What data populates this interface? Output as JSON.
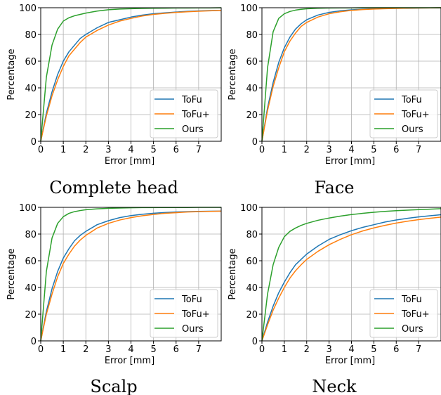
{
  "chart_data": [
    {
      "type": "line",
      "caption": "Complete head",
      "xlabel": "Error [mm]",
      "ylabel": "Percentage",
      "xlim": [
        0,
        8
      ],
      "ylim": [
        0,
        100
      ],
      "xticks": [
        0,
        1,
        2,
        3,
        4,
        5,
        6,
        7
      ],
      "yticks": [
        0,
        20,
        40,
        60,
        80,
        100
      ],
      "grid": true,
      "legend_position": "bottom-right",
      "x": [
        0,
        0.25,
        0.5,
        0.75,
        1,
        1.25,
        1.5,
        1.75,
        2,
        2.5,
        3,
        3.5,
        4,
        4.5,
        5,
        5.5,
        6,
        6.5,
        7,
        7.5,
        8
      ],
      "series": [
        {
          "name": "ToFu",
          "color": "#1f77b4",
          "values": [
            0,
            21,
            37,
            50,
            60,
            67,
            72,
            77,
            80,
            85,
            89,
            91,
            93,
            94.5,
            95.5,
            96.2,
            96.8,
            97.3,
            97.6,
            97.9,
            98
          ]
        },
        {
          "name": "ToFu+",
          "color": "#ff7f0e",
          "values": [
            0,
            19,
            34,
            46,
            56,
            64,
            69,
            74,
            78,
            83,
            87,
            90,
            92,
            93.8,
            95,
            95.8,
            96.5,
            97,
            97.4,
            97.7,
            98
          ]
        },
        {
          "name": "Ours",
          "color": "#2ca02c",
          "values": [
            0,
            48,
            72,
            84,
            90,
            92.5,
            94,
            95,
            96,
            97.5,
            98.5,
            99,
            99.3,
            99.5,
            99.6,
            99.7,
            99.8,
            99.8,
            99.9,
            99.9,
            100
          ]
        }
      ]
    },
    {
      "type": "line",
      "caption": "Face",
      "xlabel": "Error [mm]",
      "ylabel": "Percentage",
      "xlim": [
        0,
        8
      ],
      "ylim": [
        0,
        100
      ],
      "xticks": [
        0,
        1,
        2,
        3,
        4,
        5,
        6,
        7
      ],
      "yticks": [
        0,
        20,
        40,
        60,
        80,
        100
      ],
      "grid": true,
      "legend_position": "bottom-right",
      "x": [
        0,
        0.25,
        0.5,
        0.75,
        1,
        1.25,
        1.5,
        1.75,
        2,
        2.5,
        3,
        3.5,
        4,
        4.5,
        5,
        5.5,
        6,
        6.5,
        7,
        7.5,
        8
      ],
      "series": [
        {
          "name": "ToFu",
          "color": "#1f77b4",
          "values": [
            0,
            25,
            44,
            59,
            70,
            78,
            84,
            88,
            91,
            94.5,
            96.5,
            97.7,
            98.4,
            98.9,
            99.2,
            99.4,
            99.6,
            99.7,
            99.8,
            99.9,
            100
          ]
        },
        {
          "name": "ToFu+",
          "color": "#ff7f0e",
          "values": [
            0,
            23,
            41,
            55,
            67,
            75,
            81,
            86,
            89,
            93,
            95.5,
            97,
            98,
            98.6,
            99,
            99.3,
            99.5,
            99.7,
            99.8,
            99.9,
            100
          ]
        },
        {
          "name": "Ours",
          "color": "#2ca02c",
          "values": [
            0,
            55,
            82,
            92,
            95.5,
            97.2,
            98.2,
            98.8,
            99.2,
            99.6,
            99.8,
            99.9,
            99.9,
            100,
            100,
            100,
            100,
            100,
            100,
            100,
            100
          ]
        }
      ]
    },
    {
      "type": "line",
      "caption": "Scalp",
      "xlabel": "Error [mm]",
      "ylabel": "Percentage",
      "xlim": [
        0,
        8
      ],
      "ylim": [
        0,
        100
      ],
      "xticks": [
        0,
        1,
        2,
        3,
        4,
        5,
        6,
        7
      ],
      "yticks": [
        0,
        20,
        40,
        60,
        80,
        100
      ],
      "grid": true,
      "legend_position": "bottom-right",
      "x": [
        0,
        0.25,
        0.5,
        0.75,
        1,
        1.25,
        1.5,
        1.75,
        2,
        2.5,
        3,
        3.5,
        4,
        4.5,
        5,
        5.5,
        6,
        6.5,
        7,
        7.5,
        8
      ],
      "series": [
        {
          "name": "ToFu",
          "color": "#1f77b4",
          "values": [
            0,
            22,
            39,
            52,
            62,
            69,
            75,
            79,
            82,
            87,
            90,
            92.3,
            93.8,
            94.8,
            95.6,
            96.1,
            96.5,
            96.8,
            97,
            97.1,
            97.2
          ]
        },
        {
          "name": "ToFu+",
          "color": "#ff7f0e",
          "values": [
            0,
            20,
            35,
            48,
            58,
            65,
            71,
            75.5,
            79,
            84.5,
            88,
            90.5,
            92.3,
            93.7,
            94.7,
            95.5,
            96,
            96.5,
            96.8,
            97,
            97.2
          ]
        },
        {
          "name": "Ours",
          "color": "#2ca02c",
          "values": [
            0,
            52,
            77,
            88,
            93,
            95.5,
            96.8,
            97.6,
            98.2,
            98.9,
            99.3,
            99.5,
            99.7,
            99.8,
            99.8,
            99.9,
            99.9,
            99.9,
            100,
            100,
            100
          ]
        }
      ]
    },
    {
      "type": "line",
      "caption": "Neck",
      "xlabel": "Error [mm]",
      "ylabel": "Percentage",
      "xlim": [
        0,
        8
      ],
      "ylim": [
        0,
        100
      ],
      "xticks": [
        0,
        1,
        2,
        3,
        4,
        5,
        6,
        7
      ],
      "yticks": [
        0,
        20,
        40,
        60,
        80,
        100
      ],
      "grid": true,
      "legend_position": "bottom-right",
      "x": [
        0,
        0.25,
        0.5,
        0.75,
        1,
        1.25,
        1.5,
        1.75,
        2,
        2.5,
        3,
        3.5,
        4,
        4.5,
        5,
        5.5,
        6,
        6.5,
        7,
        7.5,
        8
      ],
      "series": [
        {
          "name": "ToFu",
          "color": "#1f77b4",
          "values": [
            0,
            14,
            26,
            36,
            44,
            51,
            57,
            61,
            65,
            71,
            76,
            79.5,
            82.5,
            85,
            87,
            89,
            90.5,
            91.8,
            92.8,
            93.7,
            94.5
          ]
        },
        {
          "name": "ToFu+",
          "color": "#ff7f0e",
          "values": [
            0,
            12,
            23,
            32,
            40,
            47,
            52.5,
            57,
            61,
            67,
            72,
            76,
            79.5,
            82.3,
            84.6,
            86.5,
            88.2,
            89.6,
            90.8,
            91.8,
            92.7
          ]
        },
        {
          "name": "Ours",
          "color": "#2ca02c",
          "values": [
            0,
            35,
            57,
            70,
            78,
            82,
            84.5,
            86.5,
            88,
            90.3,
            92,
            93.4,
            94.6,
            95.5,
            96.3,
            97,
            97.5,
            97.9,
            98.3,
            98.6,
            99
          ]
        }
      ]
    }
  ]
}
